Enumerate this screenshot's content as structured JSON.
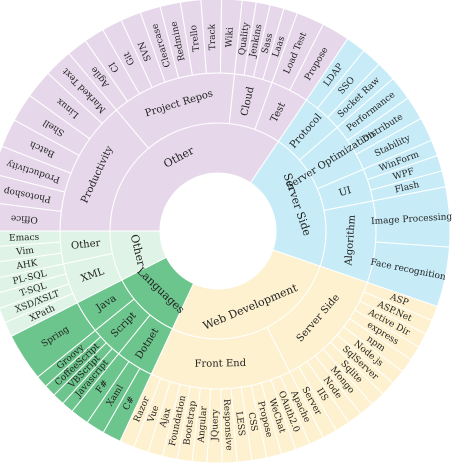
{
  "chart_data": {
    "type": "sunburst",
    "title": "",
    "colors": {
      "Other": "#e6d8ea",
      "Server Side": "#c7ecf8",
      "Web Development": "#fdf1cf",
      "Languages": "#d6f3e3",
      "Languages_center": "#6cc58c",
      "Other_languages": "#dff3e6",
      "separator": "#ffffff"
    },
    "inner": [
      {
        "label": "Other",
        "color_key": "Other",
        "span": 124
      },
      {
        "label": "Server Side",
        "color_key": "Server Side",
        "span": 75
      },
      {
        "label": "Web Development",
        "color_key": "Web Development",
        "span": 96
      },
      {
        "label": "Languages",
        "color_key": "Languages_center",
        "span": 38
      },
      {
        "label": "Other",
        "color_key": "Other_languages",
        "span": 27
      }
    ],
    "middle": [
      {
        "label": "Productivity",
        "parent": 0,
        "span": 50
      },
      {
        "label": "Project Repos",
        "parent": 0,
        "span": 46
      },
      {
        "label": "Cloud",
        "parent": 0,
        "span": 14
      },
      {
        "label": "Test",
        "parent": 0,
        "span": 14
      },
      {
        "label": "Protocol",
        "parent": 1,
        "span": 15
      },
      {
        "label": "Server Optimization",
        "parent": 1,
        "span": 18
      },
      {
        "label": "UI",
        "parent": 1,
        "span": 12
      },
      {
        "label": "Algorithm",
        "parent": 1,
        "span": 30
      },
      {
        "label": "Server Side",
        "parent": 2,
        "span": 44
      },
      {
        "label": "Front End",
        "parent": 2,
        "span": 52
      },
      {
        "label": "Dotnet",
        "parent": 3,
        "span": 14
      },
      {
        "label": "Script",
        "parent": 3,
        "span": 12
      },
      {
        "label": "Java",
        "parent": 3,
        "span": 12
      },
      {
        "label": "XML",
        "parent": 4,
        "span": 15
      },
      {
        "label": "Other",
        "parent": 4,
        "span": 12
      }
    ],
    "outer": [
      {
        "label": "Office",
        "parent": 0
      },
      {
        "label": "Photoshop",
        "parent": 0
      },
      {
        "label": "Productivity",
        "parent": 0
      },
      {
        "label": "Batch",
        "parent": 0
      },
      {
        "label": "Shell",
        "parent": 0
      },
      {
        "label": "Linux",
        "parent": 0
      },
      {
        "label": "Marked Text",
        "parent": 0
      },
      {
        "label": "Agile",
        "parent": 1
      },
      {
        "label": "CI",
        "parent": 1
      },
      {
        "label": "Git",
        "parent": 1
      },
      {
        "label": "SVN",
        "parent": 1
      },
      {
        "label": "Clearcase",
        "parent": 1
      },
      {
        "label": "Redmine",
        "parent": 1
      },
      {
        "label": "Trello",
        "parent": 1
      },
      {
        "label": "Track",
        "parent": 1
      },
      {
        "label": "Wiki",
        "parent": 1
      },
      {
        "label": "Quality",
        "parent": 2
      },
      {
        "label": "Jenkins",
        "parent": 2
      },
      {
        "label": "Sass",
        "parent": 2
      },
      {
        "label": "Laas",
        "parent": 2
      },
      {
        "label": "Load Test",
        "parent": 3
      },
      {
        "label": "Propose",
        "parent": 3
      },
      {
        "label": "LDAP",
        "parent": 4
      },
      {
        "label": "SSO",
        "parent": 4
      },
      {
        "label": "Socket Raw",
        "parent": 4
      },
      {
        "label": "Performance",
        "parent": 5
      },
      {
        "label": "Distribute",
        "parent": 5
      },
      {
        "label": "Stability",
        "parent": 5
      },
      {
        "label": "WinForm",
        "parent": 6
      },
      {
        "label": "WPF",
        "parent": 6
      },
      {
        "label": "Flash",
        "parent": 6
      },
      {
        "label": "Image Processing",
        "parent": 7
      },
      {
        "label": "Face recognition",
        "parent": 7
      },
      {
        "label": "ASP",
        "parent": 8
      },
      {
        "label": "ASP.Net",
        "parent": 8
      },
      {
        "label": "Active Dir",
        "parent": 8
      },
      {
        "label": "express",
        "parent": 8
      },
      {
        "label": "npm",
        "parent": 8
      },
      {
        "label": "Node.js",
        "parent": 8
      },
      {
        "label": "SqlServer",
        "parent": 8
      },
      {
        "label": "Sqlite",
        "parent": 8
      },
      {
        "label": "Mongo",
        "parent": 8
      },
      {
        "label": "Node",
        "parent": 8
      },
      {
        "label": "IIS",
        "parent": 8
      },
      {
        "label": "Server",
        "parent": 8
      },
      {
        "label": "Apache",
        "parent": 9
      },
      {
        "label": "OAuth2.0",
        "parent": 9
      },
      {
        "label": "WeChat",
        "parent": 9
      },
      {
        "label": "Propose",
        "parent": 9
      },
      {
        "label": "CSS",
        "parent": 9
      },
      {
        "label": "LESS",
        "parent": 9
      },
      {
        "label": "Responsive",
        "parent": 9
      },
      {
        "label": "JQuery",
        "parent": 9
      },
      {
        "label": "Angular",
        "parent": 9
      },
      {
        "label": "Bootstrap",
        "parent": 9
      },
      {
        "label": "Foundation",
        "parent": 9
      },
      {
        "label": "Ajax",
        "parent": 9
      },
      {
        "label": "Vue",
        "parent": 9
      },
      {
        "label": "Razor",
        "parent": 9
      },
      {
        "label": "C#",
        "parent": 10
      },
      {
        "label": "Xaml",
        "parent": 10
      },
      {
        "label": "F#",
        "parent": 10
      },
      {
        "label": "Javascript",
        "parent": 11
      },
      {
        "label": "VBScript",
        "parent": 11
      },
      {
        "label": "CoffeeScript",
        "parent": 11
      },
      {
        "label": "Groovy",
        "parent": 11
      },
      {
        "label": "Spring",
        "parent": 12
      },
      {
        "label": "XPath",
        "parent": 13
      },
      {
        "label": "XSD/XSLT",
        "parent": 13
      },
      {
        "label": "T-SQL",
        "parent": 13
      },
      {
        "label": "PL-SQL",
        "parent": 13
      },
      {
        "label": "AHK",
        "parent": 14
      },
      {
        "label": "Vim",
        "parent": 14
      },
      {
        "label": "Emacs",
        "parent": 14
      }
    ]
  }
}
